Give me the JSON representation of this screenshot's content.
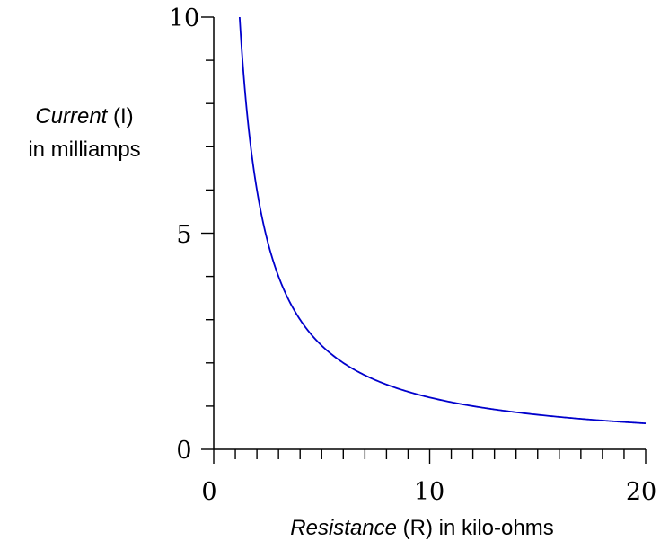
{
  "chart_data": {
    "type": "line",
    "title": "",
    "xlabel": {
      "italic": "Resistance",
      "rest": " (R) in kilo-ohms"
    },
    "ylabel": {
      "line1_italic": "Current",
      "line1_rest": " (I)",
      "line2": "in milliamps"
    },
    "xlim": [
      0,
      20
    ],
    "ylim": [
      0,
      10
    ],
    "x_ticks_labeled": [
      "0",
      "10",
      "20"
    ],
    "y_ticks_labeled": [
      "0",
      "5",
      "10"
    ],
    "x_minor_step": 1,
    "y_minor_step": 1,
    "grid": false,
    "series": [
      {
        "color": "#0000cc",
        "function": "I = 12 / R",
        "x": [
          1.2,
          1.5,
          2,
          2.5,
          3,
          4,
          5,
          6,
          8,
          10,
          12,
          15,
          18,
          20
        ],
        "y": [
          10,
          8,
          6,
          4.8,
          4,
          3,
          2.4,
          2,
          1.5,
          1.2,
          1,
          0.8,
          0.667,
          0.6
        ]
      }
    ]
  }
}
